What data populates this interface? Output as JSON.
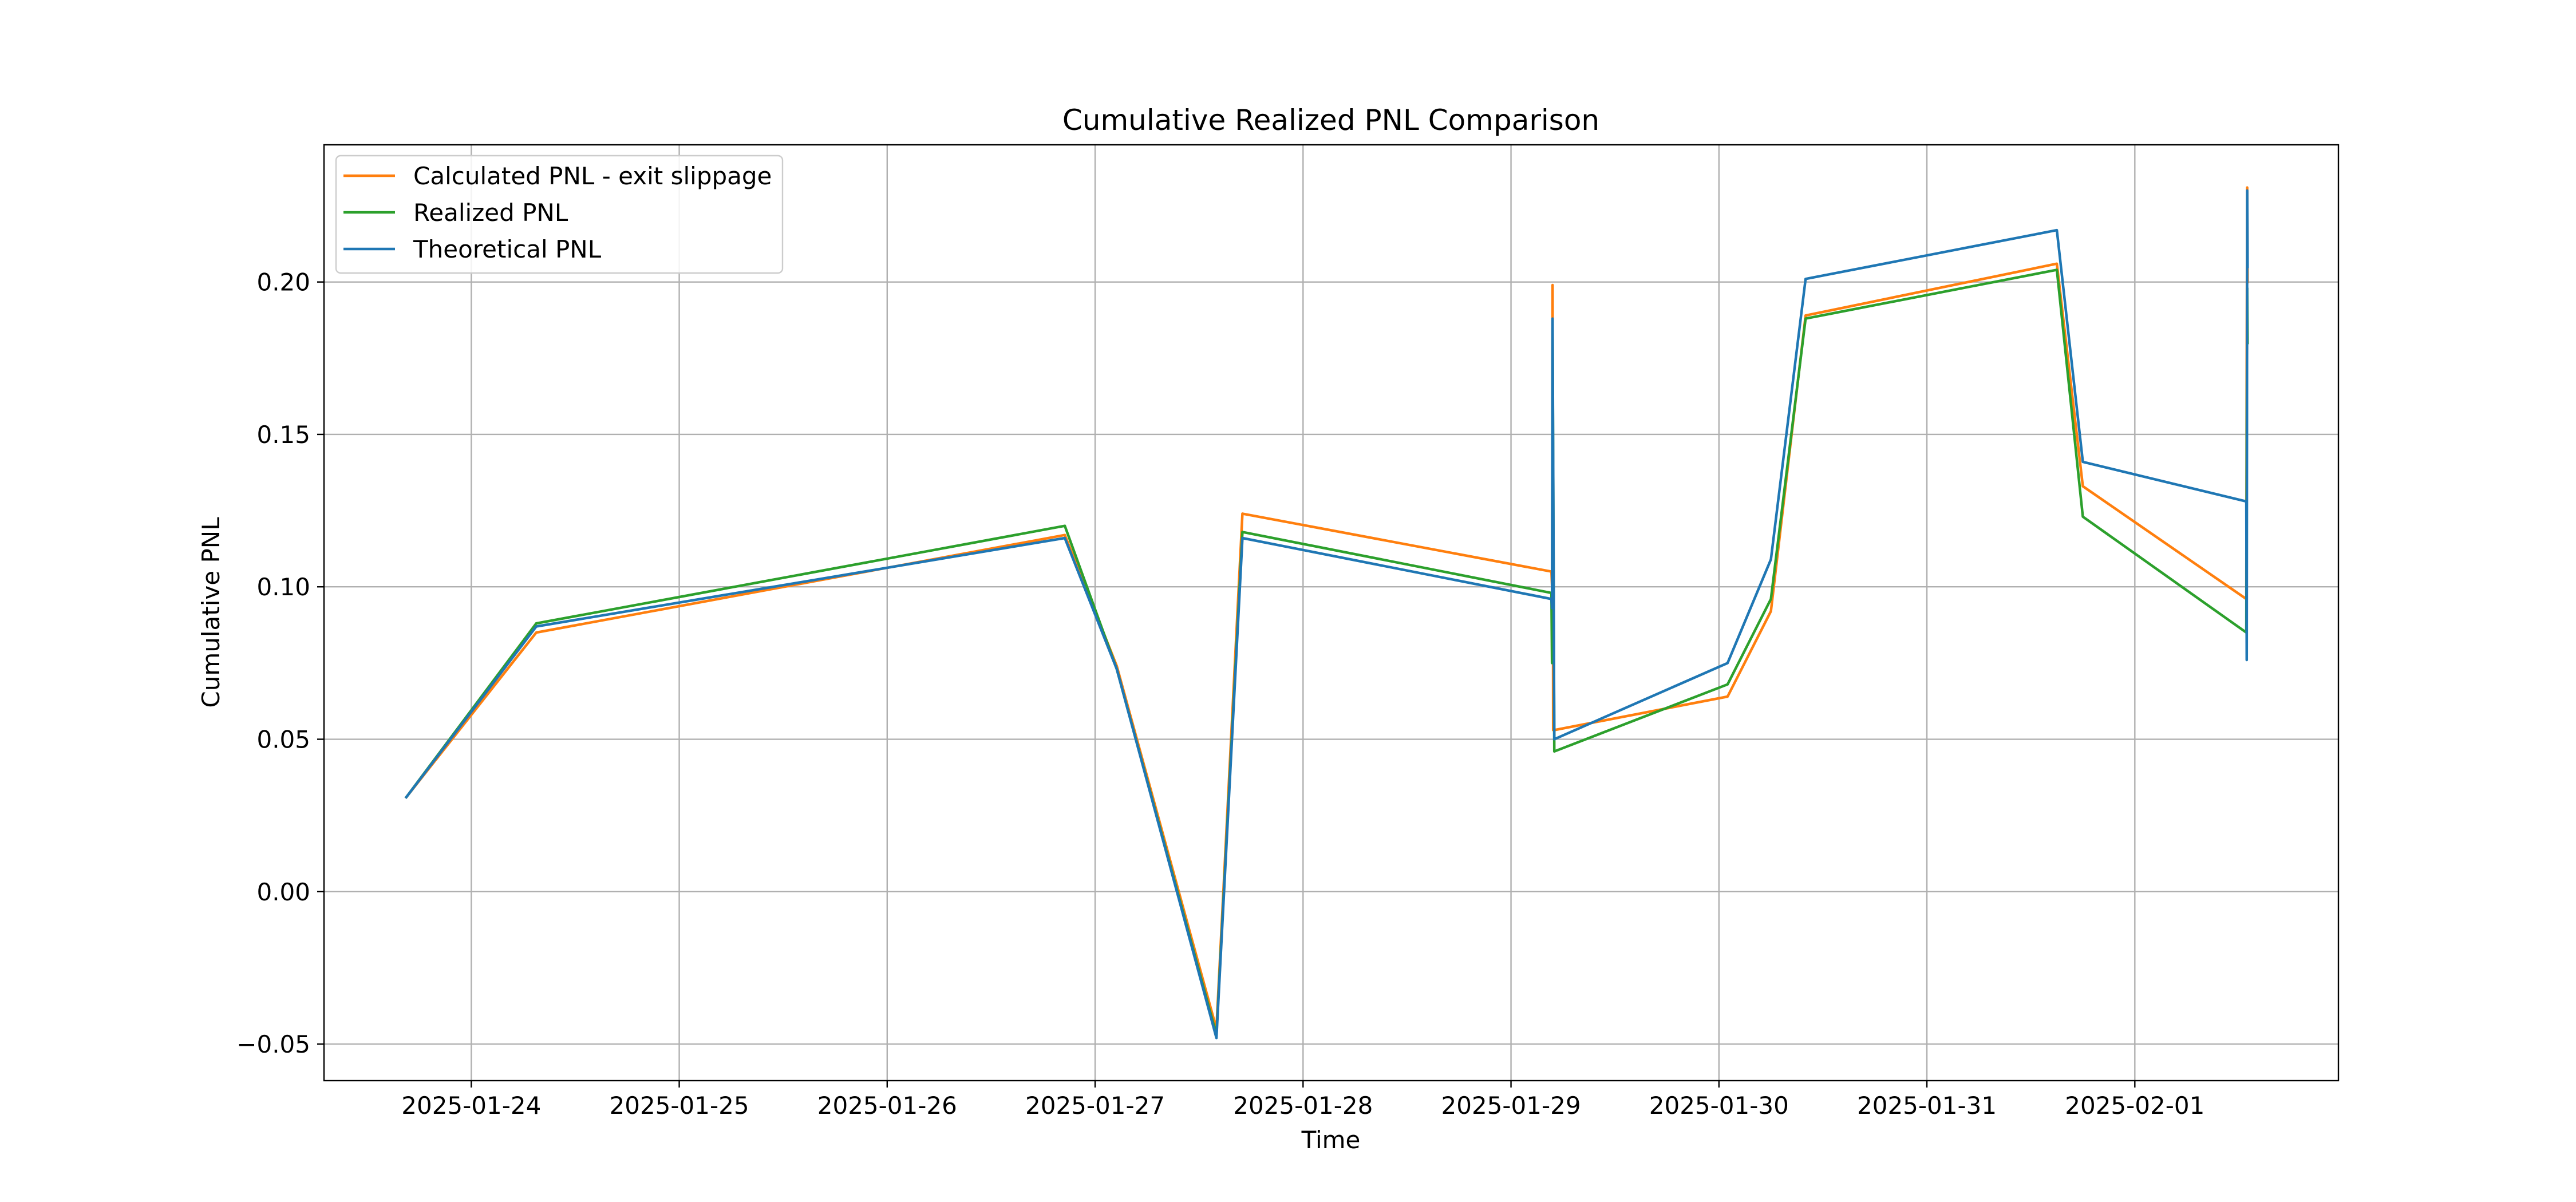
{
  "chart_data": {
    "type": "line",
    "title": "Cumulative Realized PNL Comparison",
    "xlabel": "Time",
    "ylabel": "Cumulative PNL",
    "x_tick_labels": [
      "2025-01-24",
      "2025-01-25",
      "2025-01-26",
      "2025-01-27",
      "2025-01-28",
      "2025-01-29",
      "2025-01-30",
      "2025-01-31",
      "2025-02-01"
    ],
    "y_tick_labels": [
      "−0.05",
      "0.00",
      "0.05",
      "0.10",
      "0.15",
      "0.20"
    ],
    "y_ticks": [
      -0.05,
      0.0,
      0.05,
      0.1,
      0.15,
      0.2
    ],
    "xlim": [
      "2025-01-23 07:00",
      "2025-02-01 23:30"
    ],
    "ylim": [
      -0.062,
      0.245
    ],
    "grid": true,
    "legend_position": "upper left",
    "series": [
      {
        "name": "Calculated PNL - exit slippage",
        "color": "#ff7f0e",
        "x": [
          "2025-01-23 16:30",
          "2025-01-24 07:30",
          "2025-01-26 20:30",
          "2025-01-27 02:30",
          "2025-01-27 14:00",
          "2025-01-27 17:00",
          "2025-01-29 04:40",
          "2025-01-29 04:45",
          "2025-01-29 04:48",
          "2025-01-29 04:52",
          "2025-01-29 05:00",
          "2025-01-30 01:00",
          "2025-01-30 06:00",
          "2025-01-30 10:00",
          "2025-01-31 15:00",
          "2025-01-31 18:00",
          "2025-02-01 12:52",
          "2025-02-01 12:55",
          "2025-02-01 12:58",
          "2025-02-01 13:01"
        ],
        "y": [
          0.031,
          0.085,
          0.117,
          0.074,
          -0.045,
          0.124,
          0.105,
          0.099,
          0.199,
          0.053,
          0.053,
          0.064,
          0.092,
          0.189,
          0.206,
          0.133,
          0.096,
          0.174,
          0.231,
          0.2
        ]
      },
      {
        "name": "Realized PNL",
        "color": "#2ca02c",
        "x": [
          "2025-01-23 16:30",
          "2025-01-24 07:30",
          "2025-01-26 20:30",
          "2025-01-27 02:30",
          "2025-01-27 14:00",
          "2025-01-27 17:00",
          "2025-01-29 04:40",
          "2025-01-29 04:44",
          "2025-01-29 04:48",
          "2025-01-29 05:00",
          "2025-01-30 01:00",
          "2025-01-30 06:00",
          "2025-01-30 10:00",
          "2025-01-31 15:00",
          "2025-01-31 18:00",
          "2025-02-01 12:52",
          "2025-02-01 12:55",
          "2025-02-01 12:58",
          "2025-02-01 13:01"
        ],
        "y": [
          0.031,
          0.088,
          0.12,
          0.073,
          -0.047,
          0.118,
          0.098,
          0.075,
          0.185,
          0.046,
          0.068,
          0.096,
          0.188,
          0.204,
          0.123,
          0.085,
          0.145,
          0.198,
          0.18
        ]
      },
      {
        "name": "Theoretical PNL",
        "color": "#1f77b4",
        "x": [
          "2025-01-23 16:30",
          "2025-01-24 07:30",
          "2025-01-26 20:30",
          "2025-01-27 02:30",
          "2025-01-27 14:00",
          "2025-01-27 17:00",
          "2025-01-29 04:40",
          "2025-01-29 04:44",
          "2025-01-29 04:48",
          "2025-01-29 05:00",
          "2025-01-30 01:00",
          "2025-01-30 06:00",
          "2025-01-30 10:00",
          "2025-01-31 15:00",
          "2025-01-31 18:00",
          "2025-02-01 12:52",
          "2025-02-01 12:55",
          "2025-02-01 12:58",
          "2025-02-01 13:01"
        ],
        "y": [
          0.031,
          0.087,
          0.116,
          0.073,
          -0.048,
          0.116,
          0.096,
          0.093,
          0.188,
          0.05,
          0.075,
          0.109,
          0.201,
          0.217,
          0.141,
          0.128,
          0.076,
          0.23,
          0.205
        ]
      }
    ]
  }
}
